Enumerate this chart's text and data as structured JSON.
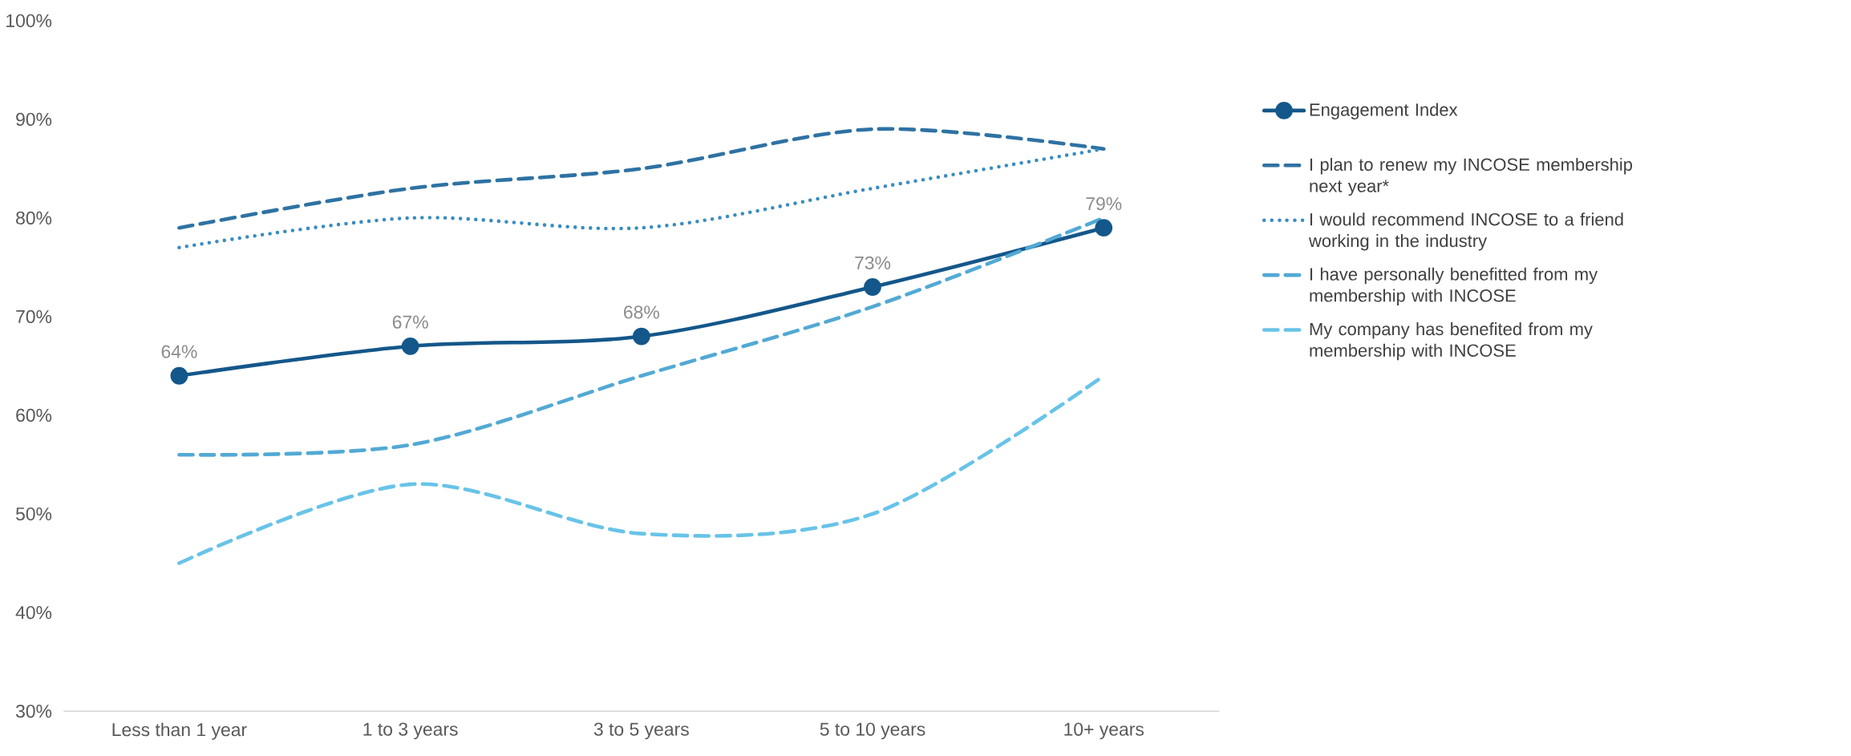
{
  "chart_data": {
    "type": "line",
    "categories": [
      "Less than 1 year",
      "1 to 3 years",
      "3 to 5 years",
      "5 to 10 years",
      "10+ years"
    ],
    "ylim": [
      30,
      100
    ],
    "yticks": [
      {
        "value": 30,
        "label": "30%"
      },
      {
        "value": 40,
        "label": "40%"
      },
      {
        "value": 50,
        "label": "50%"
      },
      {
        "value": 60,
        "label": "60%"
      },
      {
        "value": 70,
        "label": "70%"
      },
      {
        "value": 80,
        "label": "80%"
      },
      {
        "value": 90,
        "label": "90%"
      },
      {
        "value": 100,
        "label": "100%"
      }
    ],
    "legend": "right",
    "series": [
      {
        "name": "Engagement Index",
        "color": "#14578a",
        "values": [
          64,
          67,
          68,
          73,
          79
        ],
        "marker": "circle",
        "line_style": "solid",
        "value_labels": [
          "64%",
          "67%",
          "68%",
          "73%",
          "79%"
        ]
      },
      {
        "name": "I plan to renew my INCOSE membership next year*",
        "color": "#2e72a3",
        "values": [
          79,
          83,
          85,
          89,
          87
        ],
        "line_style": "dashed"
      },
      {
        "name": "I would recommend INCOSE to a friend working in the industry",
        "color": "#3a8cbf",
        "values": [
          77,
          80,
          79,
          83,
          87
        ],
        "line_style": "dotted"
      },
      {
        "name": "I have personally benefitted from my membership with INCOSE",
        "color": "#52a9d4",
        "values": [
          56,
          57,
          64,
          71,
          80
        ],
        "line_style": "dashed"
      },
      {
        "name": "My company has benefited from my membership with INCOSE",
        "color": "#68c3e8",
        "values": [
          45,
          53,
          48,
          50,
          64
        ],
        "line_style": "dashed"
      }
    ]
  }
}
